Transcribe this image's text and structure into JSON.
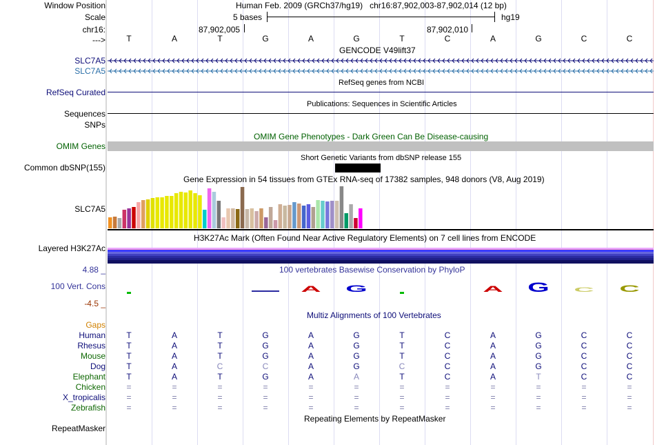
{
  "header": {
    "window_position_label": "Window Position",
    "window_position_value": "Human Feb. 2009 (GRCh37/hg19)   chr16:87,902,003-87,902,014 (12 bp)",
    "scale_label": "Scale",
    "scale_value": "5 bases",
    "scale_assembly": "hg19",
    "chrom_label": "chr16:",
    "coord_left": "87,902,005",
    "coord_right": "87,902,010",
    "strand_label": "--->"
  },
  "sequence": [
    "T",
    "A",
    "T",
    "G",
    "A",
    "G",
    "T",
    "C",
    "A",
    "G",
    "C",
    "C"
  ],
  "tracks": {
    "gencode": {
      "title": "GENCODE V49lift37",
      "rows": [
        "SLC7A5",
        "SLC7A5"
      ],
      "colors": [
        "#0c0c78",
        "#2a6fa8"
      ]
    },
    "refseq": {
      "title": "RefSeq genes from NCBI",
      "label": "RefSeq Curated",
      "color": "#0c0c78"
    },
    "publications": {
      "title": "Publications: Sequences in Scientific Articles",
      "label": "Sequences"
    },
    "snps_label": "SNPs",
    "omim": {
      "title": "OMIM Gene Phenotypes - Dark Green Can Be Disease-causing",
      "label": "OMIM Genes",
      "color": "#006000",
      "bar_color": "#c0c0c0"
    },
    "dbsnp": {
      "title": "Short Genetic Variants from dbSNP release 155",
      "label": "Common dbSNP(155)"
    },
    "gtex": {
      "title": "Gene Expression in 54 tissues from GTEx RNA-seq of 17382 samples, 948 donors (V8, Aug 2019)",
      "label": "SLC7A5"
    },
    "h3k27ac": {
      "title": "H3K27Ac Mark (Often Found Near Active Regulatory Elements) on 7 cell lines from ENCODE",
      "label": "Layered H3K27Ac"
    },
    "phylop": {
      "title": "100 vertebrates Basewise Conservation by PhyloP",
      "label": "100 Vert. Cons",
      "max": "4.88 _",
      "min": "-4.5 _",
      "title_color": "#333399",
      "max_color": "#333399",
      "min_color": "#993300"
    },
    "multiz": {
      "title": "Multiz Alignments of 100 Vertebrates",
      "gaps_label": "Gaps",
      "species": [
        {
          "name": "Human",
          "color": "#0c0c78",
          "bases": [
            "T",
            "A",
            "T",
            "G",
            "A",
            "G",
            "T",
            "C",
            "A",
            "G",
            "C",
            "C"
          ]
        },
        {
          "name": "Rhesus",
          "color": "#0c0c78",
          "bases": [
            "T",
            "A",
            "T",
            "G",
            "A",
            "G",
            "T",
            "C",
            "A",
            "G",
            "C",
            "C"
          ]
        },
        {
          "name": "Mouse",
          "color": "#0c6600",
          "bases": [
            "T",
            "A",
            "T",
            "G",
            "A",
            "G",
            "T",
            "C",
            "A",
            "G",
            "C",
            "C"
          ]
        },
        {
          "name": "Dog",
          "color": "#0c0c78",
          "bases": [
            "T",
            "A",
            "C",
            "C",
            "A",
            "G",
            "C",
            "C",
            "A",
            "G",
            "C",
            "C"
          ]
        },
        {
          "name": "Elephant",
          "color": "#0c6600",
          "bases": [
            "T",
            "A",
            "T",
            "G",
            "A",
            "A",
            "T",
            "C",
            "A",
            "T",
            "C",
            "C"
          ]
        },
        {
          "name": "Chicken",
          "color": "#0c6600",
          "bases": [
            "=",
            "=",
            "=",
            "=",
            "=",
            "=",
            "=",
            "=",
            "=",
            "=",
            "=",
            "="
          ]
        },
        {
          "name": "X_tropicalis",
          "color": "#0c0c78",
          "bases": [
            "=",
            "=",
            "=",
            "=",
            "=",
            "=",
            "=",
            "=",
            "=",
            "=",
            "=",
            "="
          ]
        },
        {
          "name": "Zebrafish",
          "color": "#0c6600",
          "bases": [
            "=",
            "=",
            "=",
            "=",
            "=",
            "=",
            "=",
            "=",
            "=",
            "=",
            "=",
            "="
          ]
        }
      ]
    },
    "repeatmasker": {
      "title": "Repeating Elements by RepeatMasker",
      "label": "RepeatMasker"
    }
  }
}
